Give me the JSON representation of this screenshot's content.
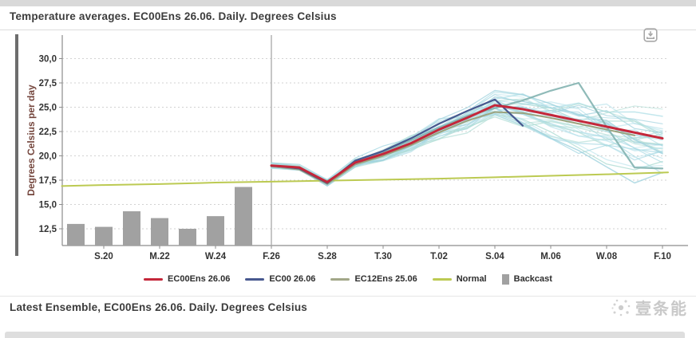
{
  "header": {
    "title": "Temperature averages. EC00Ens 26.06. Daily. Degrees Celsius"
  },
  "icons": {
    "export": "export-download-icon",
    "watermark": "spark-dots-icon"
  },
  "legend": {
    "items": [
      {
        "label": "EC00Ens 26.06",
        "color": "#c4273a",
        "type": "line"
      },
      {
        "label": "EC00 26.06",
        "color": "#47588f",
        "type": "line"
      },
      {
        "label": "EC12Ens 25.06",
        "color": "#a2a788",
        "type": "line"
      },
      {
        "label": "Normal",
        "color": "#bcca52",
        "type": "line"
      },
      {
        "label": "Backcast",
        "color": "#a1a1a1",
        "type": "bar"
      }
    ]
  },
  "footer": {
    "title": "Latest Ensemble, EC00Ens 26.06. Daily. Degrees Celsius",
    "watermark_text": "壹条能"
  },
  "chart_data": {
    "type": "line",
    "title": "Temperature averages. EC00Ens 26.06. Daily. Degrees Celsius",
    "xlabel": "",
    "ylabel": "Degrees Celsius per day",
    "ylim": [
      10.75,
      32.35
    ],
    "yticks": [
      12.5,
      15.0,
      17.5,
      20.0,
      22.5,
      25.0,
      27.5,
      30.0
    ],
    "ytick_labels": [
      "12,5",
      "15,0",
      "17,5",
      "20,0",
      "22,5",
      "25,0",
      "27,5",
      "30,0"
    ],
    "grid": "dashed-horizontal",
    "legend_position": "bottom",
    "x_axis": {
      "labels": [
        "S.20",
        "M.22",
        "W.24",
        "F.26",
        "S.28",
        "T.30",
        "T.02",
        "S.04",
        "M.06",
        "W.08",
        "F.10"
      ],
      "day_index": [
        1,
        3,
        5,
        7,
        9,
        11,
        13,
        15,
        17,
        19,
        21
      ]
    },
    "forecast_divider_day_index": 7,
    "bars": {
      "name": "Backcast",
      "color": "#a1a1a1",
      "day_index": [
        0,
        1,
        2,
        3,
        4,
        5,
        6
      ],
      "values": [
        13.0,
        12.7,
        14.3,
        13.6,
        12.5,
        13.8,
        16.8
      ]
    },
    "series": [
      {
        "name": "Normal",
        "color": "#bcca52",
        "width": 2,
        "day_index": [
          -0.5,
          1,
          3,
          5,
          7,
          9,
          11,
          13,
          15,
          17,
          19,
          21.2
        ],
        "values": [
          16.9,
          17.0,
          17.1,
          17.25,
          17.35,
          17.45,
          17.55,
          17.65,
          17.8,
          17.95,
          18.1,
          18.3
        ]
      },
      {
        "name": "EC12Ens 25.06",
        "color": "#9ba37e",
        "width": 2,
        "day_index": [
          7,
          8,
          9,
          10,
          11,
          12,
          13,
          14,
          15,
          16,
          17,
          18,
          19,
          20
        ],
        "values": [
          18.9,
          18.6,
          17.1,
          19.1,
          20.0,
          21.1,
          22.4,
          23.6,
          24.5,
          24.4,
          23.9,
          23.3,
          22.7,
          22.1
        ]
      },
      {
        "name": "outlier-member",
        "color": "#83b3b0",
        "width": 2.2,
        "opacity": 0.9,
        "day_index": [
          7,
          8,
          9,
          10,
          11,
          12,
          13,
          14,
          15,
          16,
          17,
          18,
          19,
          20,
          21
        ],
        "values": [
          18.9,
          18.7,
          17.4,
          19.2,
          20.4,
          21.6,
          22.9,
          24.1,
          24.9,
          25.7,
          26.7,
          27.5,
          23.0,
          18.8,
          18.7
        ]
      },
      {
        "name": "EC00 26.06",
        "color": "#47588f",
        "width": 2.2,
        "day_index": [
          7,
          8,
          9,
          10,
          11,
          12,
          13,
          14,
          15,
          16
        ],
        "values": [
          19.0,
          18.7,
          17.2,
          19.5,
          20.5,
          21.8,
          23.3,
          24.6,
          25.8,
          23.1
        ]
      },
      {
        "name": "EC00Ens 26.06",
        "color": "#c4273a",
        "width": 3,
        "day_index": [
          7,
          8,
          9,
          10,
          11,
          12,
          13,
          14,
          15,
          16,
          17,
          18,
          19,
          20,
          21
        ],
        "values": [
          19.0,
          18.8,
          17.3,
          19.3,
          20.2,
          21.3,
          22.7,
          23.9,
          25.2,
          24.8,
          24.2,
          23.6,
          23.0,
          22.4,
          21.8
        ]
      }
    ],
    "ensemble": {
      "count": 32,
      "seed": 11,
      "follow": "EC00Ens 26.06",
      "clamp": [
        13.3,
        28.4
      ],
      "colors": [
        "#a7d9e3",
        "#9fd2de",
        "#b0ddd5",
        "#b7e2ea"
      ]
    }
  }
}
